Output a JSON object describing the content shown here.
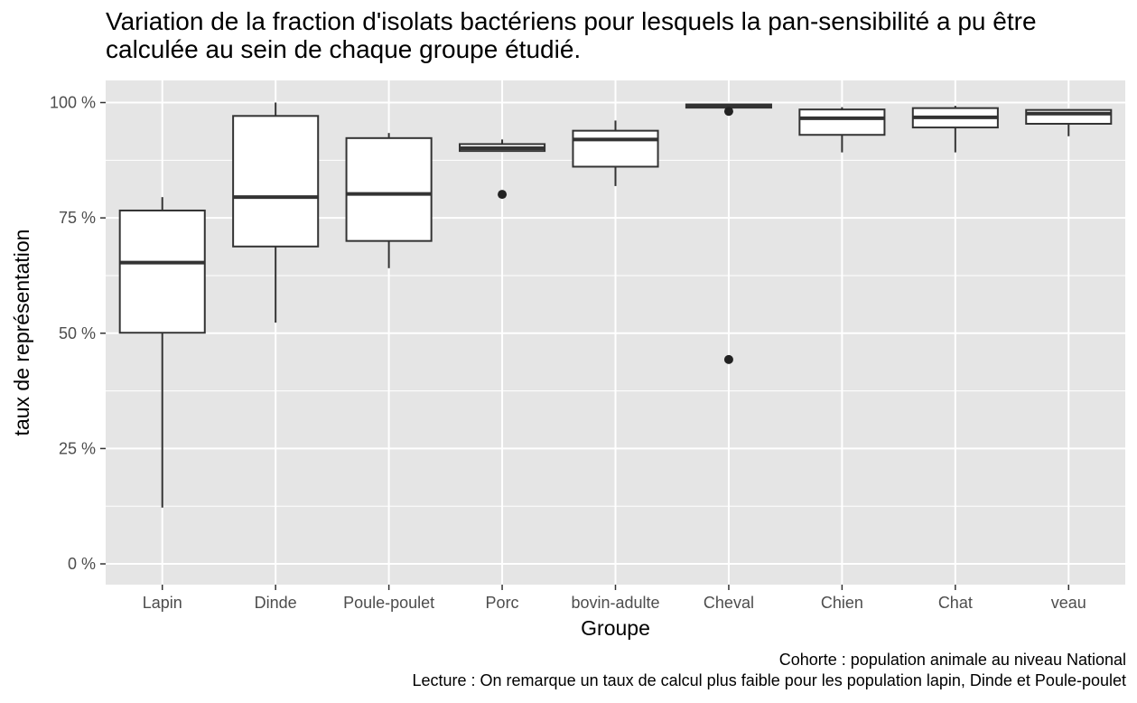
{
  "chart_data": {
    "type": "boxplot",
    "title": "Variation de la fraction d'isolats bactériens pour lesquels la pan-sensibilité a pu être calculée au sein de chaque groupe étudié.",
    "xlabel": "Groupe",
    "ylabel": "taux de représentation",
    "ylim": [
      -4.5,
      104.8
    ],
    "yticks": [
      0,
      25,
      50,
      75,
      100
    ],
    "ytick_labels": [
      "0 %",
      "25 %",
      "50 %",
      "75 %",
      "100 %"
    ],
    "grid": true,
    "categories": [
      "Lapin",
      "Dinde",
      "Poule-poulet",
      "Porc",
      "bovin-adulte",
      "Cheval",
      "Chien",
      "Chat",
      "veau"
    ],
    "boxes": [
      {
        "group": "Lapin",
        "whisker_low": 12.2,
        "q1": 50.1,
        "median": 65.3,
        "q3": 76.6,
        "whisker_high": 79.5,
        "outliers": []
      },
      {
        "group": "Dinde",
        "whisker_low": 52.3,
        "q1": 68.8,
        "median": 79.5,
        "q3": 97.1,
        "whisker_high": 100.0,
        "outliers": []
      },
      {
        "group": "Poule-poulet",
        "whisker_low": 64.1,
        "q1": 70.0,
        "median": 80.2,
        "q3": 92.3,
        "whisker_high": 93.4,
        "outliers": []
      },
      {
        "group": "Porc",
        "whisker_low": 89.3,
        "q1": 89.5,
        "median": 90.1,
        "q3": 91.0,
        "whisker_high": 92.0,
        "outliers": [
          80.1
        ]
      },
      {
        "group": "bovin-adulte",
        "whisker_low": 81.9,
        "q1": 86.1,
        "median": 92.0,
        "q3": 93.9,
        "whisker_high": 96.1,
        "outliers": []
      },
      {
        "group": "Cheval",
        "whisker_low": 98.9,
        "q1": 98.9,
        "median": 99.3,
        "q3": 99.6,
        "whisker_high": 99.6,
        "outliers": [
          98.1,
          44.3
        ]
      },
      {
        "group": "Chien",
        "whisker_low": 89.2,
        "q1": 93.0,
        "median": 96.6,
        "q3": 98.5,
        "whisker_high": 99.0,
        "outliers": []
      },
      {
        "group": "Chat",
        "whisker_low": 89.2,
        "q1": 94.6,
        "median": 96.8,
        "q3": 98.8,
        "whisker_high": 99.3,
        "outliers": []
      },
      {
        "group": "veau",
        "whisker_low": 92.7,
        "q1": 95.4,
        "median": 97.6,
        "q3": 98.4,
        "whisker_high": 98.6,
        "outliers": []
      }
    ],
    "colors": {
      "panel": "#e5e5e5",
      "grid": "#ffffff",
      "box_fill": "#ffffff",
      "box_stroke": "#333333",
      "point": "#222222"
    }
  },
  "captions": {
    "line1": "Cohorte : population animale au niveau National",
    "line2": "Lecture : On remarque un taux de calcul plus faible pour les population lapin, Dinde et Poule-poulet"
  }
}
